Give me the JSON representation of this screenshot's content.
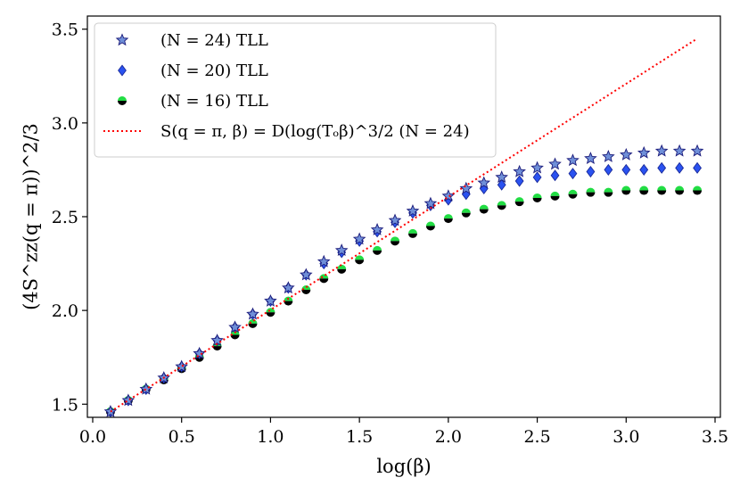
{
  "chart_data": {
    "type": "scatter",
    "xlabel": "log(β)",
    "ylabel": "(4S^zz(q = π))^2/3",
    "xlim": [
      -0.03,
      3.53
    ],
    "ylim": [
      1.43,
      3.57
    ],
    "xticks": [
      {
        "value": 0.0,
        "label": "0.0"
      },
      {
        "value": 0.5,
        "label": "0.5"
      },
      {
        "value": 1.0,
        "label": "1.0"
      },
      {
        "value": 1.5,
        "label": "1.5"
      },
      {
        "value": 2.0,
        "label": "2.0"
      },
      {
        "value": 2.5,
        "label": "2.5"
      },
      {
        "value": 3.0,
        "label": "3.0"
      },
      {
        "value": 3.5,
        "label": "3.5"
      }
    ],
    "yticks": [
      {
        "value": 1.5,
        "label": "1.5"
      },
      {
        "value": 2.0,
        "label": "2.0"
      },
      {
        "value": 2.5,
        "label": "2.5"
      },
      {
        "value": 3.0,
        "label": "3.0"
      },
      {
        "value": 3.5,
        "label": "3.5"
      }
    ],
    "legend_position": "top-left",
    "grid": false,
    "series": [
      {
        "name": "(N = 24) TLL",
        "marker": "star",
        "color": "#6f8fd8",
        "edge_color": "#1a1a7a",
        "x": [
          0.1,
          0.2,
          0.3,
          0.4,
          0.5,
          0.6,
          0.7,
          0.8,
          0.9,
          1.0,
          1.1,
          1.2,
          1.3,
          1.4,
          1.5,
          1.6,
          1.7,
          1.8,
          1.9,
          2.0,
          2.1,
          2.2,
          2.3,
          2.4,
          2.5,
          2.6,
          2.7,
          2.8,
          2.9,
          3.0,
          3.1,
          3.2,
          3.3,
          3.4
        ],
        "y": [
          1.46,
          1.52,
          1.58,
          1.64,
          1.7,
          1.77,
          1.84,
          1.91,
          1.98,
          2.05,
          2.12,
          2.19,
          2.26,
          2.32,
          2.38,
          2.43,
          2.48,
          2.53,
          2.57,
          2.61,
          2.65,
          2.68,
          2.71,
          2.74,
          2.76,
          2.78,
          2.8,
          2.81,
          2.82,
          2.83,
          2.84,
          2.85,
          2.85,
          2.85
        ]
      },
      {
        "name": "(N = 20) TLL",
        "marker": "diamond",
        "color": "#2a52f0",
        "edge_color": "#1a2a9a",
        "x": [
          0.1,
          0.2,
          0.3,
          0.4,
          0.5,
          0.6,
          0.7,
          0.8,
          0.9,
          1.0,
          1.1,
          1.2,
          1.3,
          1.4,
          1.5,
          1.6,
          1.7,
          1.8,
          1.9,
          2.0,
          2.1,
          2.2,
          2.3,
          2.4,
          2.5,
          2.6,
          2.7,
          2.8,
          2.9,
          3.0,
          3.1,
          3.2,
          3.3,
          3.4
        ],
        "y": [
          1.46,
          1.52,
          1.58,
          1.64,
          1.7,
          1.77,
          1.84,
          1.91,
          1.98,
          2.05,
          2.12,
          2.19,
          2.25,
          2.31,
          2.37,
          2.42,
          2.47,
          2.52,
          2.56,
          2.59,
          2.62,
          2.65,
          2.67,
          2.69,
          2.71,
          2.72,
          2.73,
          2.74,
          2.75,
          2.75,
          2.75,
          2.76,
          2.76,
          2.76
        ]
      },
      {
        "name": "(N = 16) TLL",
        "marker": "half-circle",
        "color": "#22dd44",
        "edge_color": "#000000",
        "x": [
          0.1,
          0.2,
          0.3,
          0.4,
          0.5,
          0.6,
          0.7,
          0.8,
          0.9,
          1.0,
          1.1,
          1.2,
          1.3,
          1.4,
          1.5,
          1.6,
          1.7,
          1.8,
          1.9,
          2.0,
          2.1,
          2.2,
          2.3,
          2.4,
          2.5,
          2.6,
          2.7,
          2.8,
          2.9,
          3.0,
          3.1,
          3.2,
          3.3,
          3.4
        ],
        "y": [
          1.46,
          1.52,
          1.58,
          1.63,
          1.69,
          1.75,
          1.81,
          1.87,
          1.93,
          1.99,
          2.05,
          2.11,
          2.17,
          2.22,
          2.27,
          2.32,
          2.37,
          2.41,
          2.45,
          2.49,
          2.52,
          2.54,
          2.56,
          2.58,
          2.6,
          2.61,
          2.62,
          2.63,
          2.63,
          2.64,
          2.64,
          2.64,
          2.64,
          2.64
        ]
      },
      {
        "name": "S(q = π, β) = D(log(Tₒβ)^3/2 (N = 24)",
        "marker": "dotted-line",
        "color": "#ff0000",
        "x": [
          0.1,
          3.4
        ],
        "y": [
          1.46,
          3.45
        ]
      }
    ]
  }
}
